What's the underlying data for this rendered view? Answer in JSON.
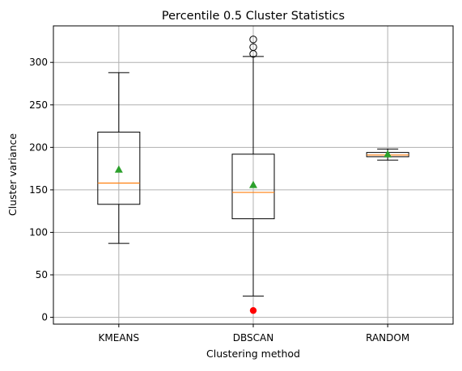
{
  "chart_data": {
    "type": "box",
    "title": "Percentile 0.5 Cluster Statistics",
    "xlabel": "Clustering method",
    "ylabel": "Cluster variance",
    "categories": [
      "KMEANS",
      "DBSCAN",
      "RANDOM"
    ],
    "ylim": [
      -8,
      343
    ],
    "yticks": [
      0,
      50,
      100,
      150,
      200,
      250,
      300
    ],
    "grid": true,
    "boxes": [
      {
        "label": "KMEANS",
        "whisker_low": 87,
        "q1": 133,
        "median": 158,
        "q3": 218,
        "whisker_high": 288,
        "mean": 174,
        "outliers": [],
        "extra_points": []
      },
      {
        "label": "DBSCAN",
        "whisker_low": 25,
        "q1": 116,
        "median": 147,
        "q3": 192,
        "whisker_high": 307,
        "mean": 156,
        "outliers": [
          310,
          318,
          327
        ],
        "extra_points": [
          8
        ]
      },
      {
        "label": "RANDOM",
        "whisker_low": 185,
        "q1": 189,
        "median": 191,
        "q3": 194,
        "whisker_high": 198,
        "mean": 192,
        "outliers": [],
        "extra_points": []
      }
    ],
    "colors": {
      "box": "#000000",
      "median": "#ff7f0e",
      "mean_marker": "#2ca02c",
      "extra_point": "#ff0000",
      "grid": "#b0b0b0",
      "axes": "#000000",
      "background": "#ffffff"
    }
  }
}
